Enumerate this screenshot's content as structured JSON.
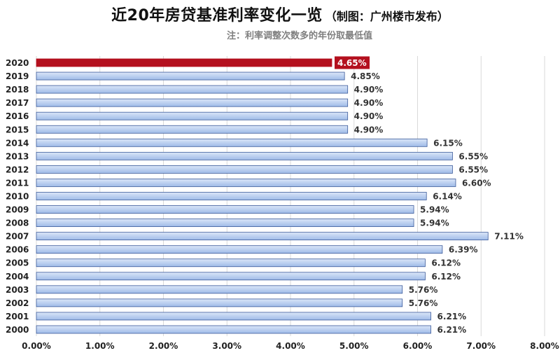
{
  "title": "近20年房贷基准利率变化一览",
  "title_note": "（制图：广州楼市发布）",
  "subtitle": "注：利率调整次数多的年份取最低值",
  "colors": {
    "bar_fill_top": "#dbe6f8",
    "bar_fill_bottom": "#9fbbe8",
    "bar_stroke": "#3b5a9a",
    "highlight": "#b4101e",
    "grid": "#d9d9d9"
  },
  "chart_data": {
    "type": "bar",
    "orientation": "horizontal",
    "categories": [
      "2020",
      "2019",
      "2018",
      "2017",
      "2016",
      "2015",
      "2014",
      "2013",
      "2012",
      "2011",
      "2010",
      "2009",
      "2008",
      "2007",
      "2006",
      "2005",
      "2004",
      "2003",
      "2002",
      "2001",
      "2000"
    ],
    "values": [
      4.65,
      4.85,
      4.9,
      4.9,
      4.9,
      4.9,
      6.15,
      6.55,
      6.55,
      6.6,
      6.14,
      5.94,
      5.94,
      7.11,
      6.39,
      6.12,
      6.12,
      5.76,
      5.76,
      6.21,
      6.21
    ],
    "labels": [
      "4.65%",
      "4.85%",
      "4.90%",
      "4.90%",
      "4.90%",
      "4.90%",
      "6.15%",
      "6.55%",
      "6.55%",
      "6.60%",
      "6.14%",
      "5.94%",
      "5.94%",
      "7.11%",
      "6.39%",
      "6.12%",
      "6.12%",
      "5.76%",
      "5.76%",
      "6.21%",
      "6.21%"
    ],
    "highlight_index": 0,
    "xlim": [
      0,
      8
    ],
    "xticks": [
      "0.00%",
      "1.00%",
      "2.00%",
      "3.00%",
      "4.00%",
      "5.00%",
      "6.00%",
      "7.00%",
      "8.00%"
    ],
    "grid": true
  }
}
